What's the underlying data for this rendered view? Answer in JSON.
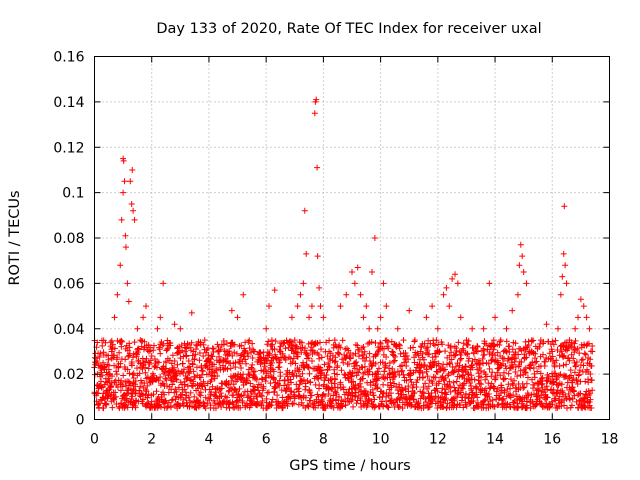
{
  "chart_data": {
    "type": "scatter",
    "title": "Day 133 of 2020, Rate Of TEC Index for receiver uxal",
    "xlabel": "GPS time / hours",
    "ylabel": "ROTI / TECUs",
    "xlim": [
      0,
      18
    ],
    "ylim": [
      0,
      0.16
    ],
    "x_ticks": [
      0,
      2,
      4,
      6,
      8,
      10,
      12,
      14,
      16,
      18
    ],
    "y_ticks": [
      0,
      0.02,
      0.04,
      0.06,
      0.08,
      0.1,
      0.12,
      0.14,
      0.16
    ],
    "x_tick_labels": [
      "0",
      "2",
      "4",
      "6",
      "8",
      "10",
      "12",
      "14",
      "16",
      "18"
    ],
    "y_tick_labels": [
      "0",
      "0.02",
      "0.04",
      "0.06",
      "0.08",
      "0.1",
      "0.12",
      "0.14",
      "0.16"
    ],
    "grid": true,
    "marker": "+",
    "color": "#ff0000",
    "x_data_range": [
      0,
      17.4
    ],
    "series": [
      {
        "name": "ROTI",
        "points": [
          [
            0.0,
            0.012
          ],
          [
            0.1,
            0.02
          ],
          [
            0.2,
            0.015
          ],
          [
            0.3,
            0.025
          ],
          [
            0.4,
            0.018
          ],
          [
            0.5,
            0.022
          ],
          [
            0.6,
            0.03
          ],
          [
            0.7,
            0.045
          ],
          [
            0.8,
            0.055
          ],
          [
            0.9,
            0.068
          ],
          [
            0.95,
            0.088
          ],
          [
            1.0,
            0.1
          ],
          [
            1.0,
            0.115
          ],
          [
            1.02,
            0.114
          ],
          [
            1.05,
            0.105
          ],
          [
            1.08,
            0.081
          ],
          [
            1.1,
            0.076
          ],
          [
            1.15,
            0.06
          ],
          [
            1.2,
            0.052
          ],
          [
            1.25,
            0.105
          ],
          [
            1.3,
            0.095
          ],
          [
            1.32,
            0.11
          ],
          [
            1.35,
            0.092
          ],
          [
            1.4,
            0.088
          ],
          [
            1.5,
            0.04
          ],
          [
            1.6,
            0.035
          ],
          [
            1.7,
            0.045
          ],
          [
            1.8,
            0.05
          ],
          [
            1.9,
            0.03
          ],
          [
            2.0,
            0.028
          ],
          [
            2.2,
            0.04
          ],
          [
            2.3,
            0.045
          ],
          [
            2.4,
            0.06
          ],
          [
            2.5,
            0.025
          ],
          [
            2.6,
            0.02
          ],
          [
            2.8,
            0.042
          ],
          [
            3.0,
            0.04
          ],
          [
            3.2,
            0.018
          ],
          [
            3.4,
            0.047
          ],
          [
            3.6,
            0.015
          ],
          [
            3.8,
            0.028
          ],
          [
            4.0,
            0.02
          ],
          [
            4.2,
            0.018
          ],
          [
            4.4,
            0.022
          ],
          [
            4.6,
            0.03
          ],
          [
            4.8,
            0.048
          ],
          [
            5.0,
            0.045
          ],
          [
            5.2,
            0.055
          ],
          [
            5.4,
            0.02
          ],
          [
            5.6,
            0.03
          ],
          [
            5.8,
            0.025
          ],
          [
            6.0,
            0.04
          ],
          [
            6.1,
            0.05
          ],
          [
            6.2,
            0.035
          ],
          [
            6.3,
            0.057
          ],
          [
            6.5,
            0.03
          ],
          [
            6.7,
            0.02
          ],
          [
            6.9,
            0.045
          ],
          [
            7.0,
            0.035
          ],
          [
            7.1,
            0.05
          ],
          [
            7.2,
            0.055
          ],
          [
            7.3,
            0.06
          ],
          [
            7.35,
            0.092
          ],
          [
            7.4,
            0.073
          ],
          [
            7.5,
            0.045
          ],
          [
            7.6,
            0.05
          ],
          [
            7.7,
            0.135
          ],
          [
            7.72,
            0.14
          ],
          [
            7.75,
            0.141
          ],
          [
            7.78,
            0.111
          ],
          [
            7.8,
            0.072
          ],
          [
            7.85,
            0.058
          ],
          [
            7.9,
            0.05
          ],
          [
            8.0,
            0.045
          ],
          [
            8.2,
            0.03
          ],
          [
            8.4,
            0.035
          ],
          [
            8.6,
            0.05
          ],
          [
            8.8,
            0.055
          ],
          [
            9.0,
            0.065
          ],
          [
            9.1,
            0.06
          ],
          [
            9.2,
            0.067
          ],
          [
            9.3,
            0.055
          ],
          [
            9.4,
            0.045
          ],
          [
            9.5,
            0.05
          ],
          [
            9.6,
            0.04
          ],
          [
            9.7,
            0.065
          ],
          [
            9.8,
            0.08
          ],
          [
            9.9,
            0.04
          ],
          [
            10.0,
            0.045
          ],
          [
            10.1,
            0.06
          ],
          [
            10.2,
            0.05
          ],
          [
            10.4,
            0.03
          ],
          [
            10.6,
            0.04
          ],
          [
            10.8,
            0.035
          ],
          [
            11.0,
            0.048
          ],
          [
            11.2,
            0.035
          ],
          [
            11.4,
            0.03
          ],
          [
            11.6,
            0.045
          ],
          [
            11.8,
            0.05
          ],
          [
            12.0,
            0.04
          ],
          [
            12.2,
            0.055
          ],
          [
            12.3,
            0.058
          ],
          [
            12.4,
            0.05
          ],
          [
            12.5,
            0.062
          ],
          [
            12.6,
            0.064
          ],
          [
            12.7,
            0.06
          ],
          [
            12.8,
            0.045
          ],
          [
            13.0,
            0.035
          ],
          [
            13.2,
            0.04
          ],
          [
            13.4,
            0.03
          ],
          [
            13.6,
            0.04
          ],
          [
            13.8,
            0.06
          ],
          [
            14.0,
            0.045
          ],
          [
            14.2,
            0.035
          ],
          [
            14.4,
            0.04
          ],
          [
            14.6,
            0.048
          ],
          [
            14.8,
            0.055
          ],
          [
            14.85,
            0.068
          ],
          [
            14.9,
            0.077
          ],
          [
            14.95,
            0.072
          ],
          [
            15.0,
            0.065
          ],
          [
            15.1,
            0.06
          ],
          [
            15.2,
            0.03
          ],
          [
            15.4,
            0.025
          ],
          [
            15.6,
            0.035
          ],
          [
            15.8,
            0.042
          ],
          [
            16.0,
            0.03
          ],
          [
            16.2,
            0.04
          ],
          [
            16.3,
            0.055
          ],
          [
            16.35,
            0.063
          ],
          [
            16.4,
            0.073
          ],
          [
            16.42,
            0.094
          ],
          [
            16.45,
            0.068
          ],
          [
            16.5,
            0.06
          ],
          [
            16.6,
            0.035
          ],
          [
            16.8,
            0.04
          ],
          [
            16.9,
            0.045
          ],
          [
            17.0,
            0.053
          ],
          [
            17.1,
            0.05
          ],
          [
            17.2,
            0.045
          ],
          [
            17.3,
            0.04
          ],
          [
            17.4,
            0.03
          ]
        ],
        "band": {
          "x_start": 0,
          "x_end": 17.4,
          "x_step": 0.02,
          "low": 0.005,
          "high": 0.035
        }
      }
    ]
  }
}
